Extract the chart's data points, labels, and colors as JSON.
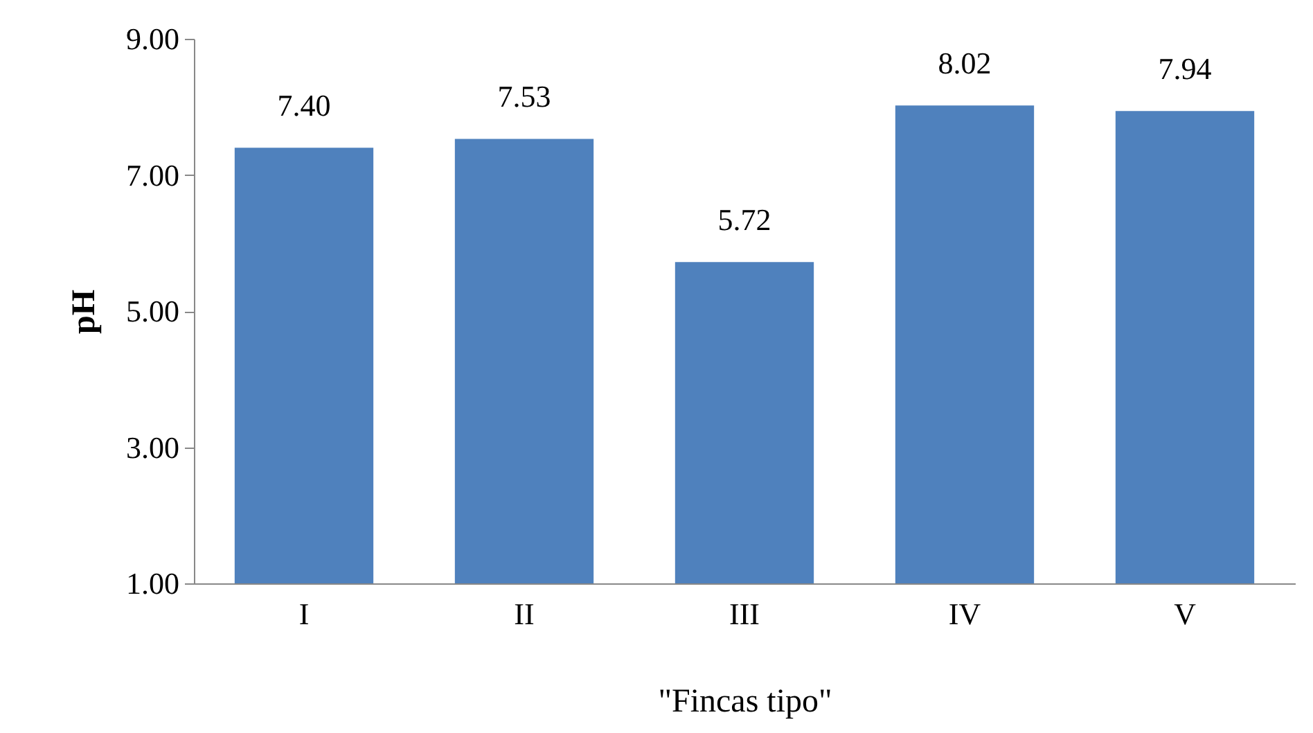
{
  "chart_data": {
    "type": "bar",
    "xlabel": "\"Fincas tipo\"",
    "ylabel": "pH",
    "categories": [
      "I",
      "II",
      "III",
      "IV",
      "V"
    ],
    "values": [
      7.4,
      7.53,
      5.72,
      8.02,
      7.94
    ],
    "value_labels": [
      "7.40",
      "7.53",
      "5.72",
      "8.02",
      "7.94"
    ],
    "color": "#4f81bd",
    "ylim": [
      1,
      9
    ],
    "yticks": [
      {
        "value": 1,
        "label": "1.00"
      },
      {
        "value": 3,
        "label": "3.00"
      },
      {
        "value": 5,
        "label": "5.00"
      },
      {
        "value": 7,
        "label": "7.00"
      },
      {
        "value": 9,
        "label": "9.00"
      }
    ],
    "grid": false
  }
}
